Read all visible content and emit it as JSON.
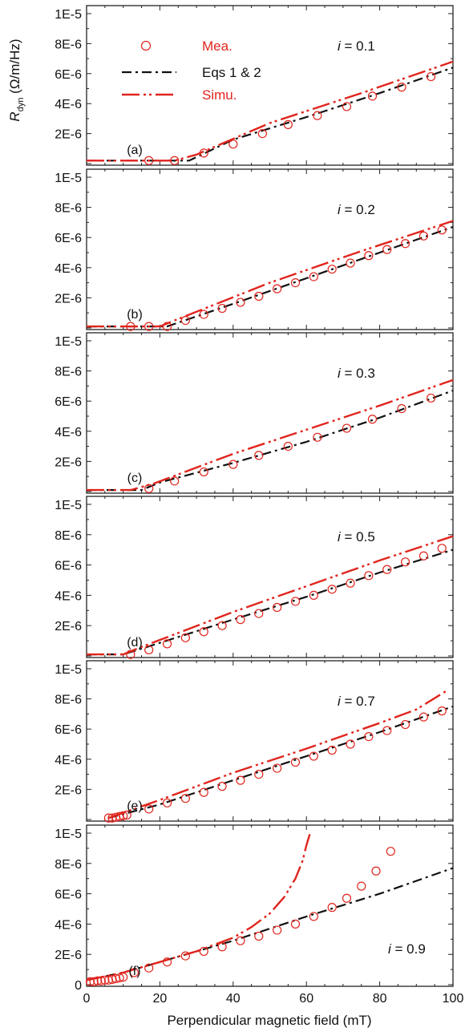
{
  "figure": {
    "y_axis_label": "R",
    "y_axis_label_sub": "dyn",
    "y_axis_label_unit": " (Ω/m/Hz)",
    "x_axis_label": "Perpendicular magnetic field (mT)",
    "legend": [
      {
        "label": "Mea.",
        "style": "circle",
        "color": "#e0251d"
      },
      {
        "label": "Eqs 1 & 2",
        "style": "dashdot",
        "color": "#111111"
      },
      {
        "label": "Simu.",
        "style": "longdashdotdot",
        "color": "#e0251d"
      }
    ],
    "colors": {
      "measured": "#e0251d",
      "equations": "#111111",
      "simulation": "#e0251d",
      "axis": "#222222"
    }
  },
  "chart_data": [
    {
      "type": "scatter",
      "panel": "(a)",
      "annotation_var": "i",
      "annotation_val": " = 0.1",
      "xlim": [
        0,
        100
      ],
      "ylim": [
        0,
        1e-05
      ],
      "grid": false,
      "legend_position": "top-left",
      "y_ticks": [
        "2E-6",
        "4E-6",
        "6E-6",
        "8E-6",
        "1E-5"
      ],
      "series": [
        {
          "name": "Mea.",
          "x": [
            17,
            24,
            32,
            40,
            48,
            55,
            63,
            71,
            78,
            86,
            94
          ],
          "y": [
            2e-07,
            2e-07,
            7e-07,
            1.3e-06,
            2e-06,
            2.6e-06,
            3.2e-06,
            3.8e-06,
            4.5e-06,
            5.1e-06,
            5.8e-06
          ]
        },
        {
          "name": "Eqs 1 & 2",
          "x": [
            0,
            28,
            40,
            60,
            80,
            100
          ],
          "y": [
            2e-07,
            2e-07,
            1.6e-06,
            3.1e-06,
            4.7e-06,
            6.4e-06
          ]
        },
        {
          "name": "Simu.",
          "x": [
            0,
            24,
            30,
            50,
            75,
            100
          ],
          "y": [
            2e-07,
            2e-07,
            6e-07,
            2.7e-06,
            4.7e-06,
            6.8e-06
          ]
        }
      ]
    },
    {
      "type": "scatter",
      "panel": "(b)",
      "annotation_var": "i",
      "annotation_val": " = 0.2",
      "xlim": [
        0,
        100
      ],
      "ylim": [
        0,
        1e-05
      ],
      "grid": false,
      "y_ticks": [
        "2E-6",
        "4E-6",
        "6E-6",
        "8E-6",
        "1E-5"
      ],
      "series": [
        {
          "name": "Mea.",
          "x": [
            12,
            17,
            22,
            27,
            32,
            37,
            42,
            47,
            52,
            57,
            62,
            67,
            72,
            77,
            82,
            87,
            92,
            97
          ],
          "y": [
            1e-07,
            1e-07,
            1e-07,
            5e-07,
            9e-07,
            1.3e-06,
            1.7e-06,
            2.1e-06,
            2.6e-06,
            3e-06,
            3.4e-06,
            3.9e-06,
            4.3e-06,
            4.8e-06,
            5.2e-06,
            5.6e-06,
            6.1e-06,
            6.5e-06
          ]
        },
        {
          "name": "Eqs 1 & 2",
          "x": [
            0,
            22,
            40,
            60,
            80,
            100
          ],
          "y": [
            1e-07,
            1e-07,
            1.6e-06,
            3.3e-06,
            5e-06,
            6.7e-06
          ]
        },
        {
          "name": "Simu.",
          "x": [
            0,
            20,
            24,
            50,
            75,
            100
          ],
          "y": [
            1e-07,
            1e-07,
            5e-07,
            3e-06,
            5.1e-06,
            7.1e-06
          ]
        }
      ]
    },
    {
      "type": "scatter",
      "panel": "(c)",
      "annotation_var": "i",
      "annotation_val": " = 0.3",
      "xlim": [
        0,
        100
      ],
      "ylim": [
        0,
        1e-05
      ],
      "grid": false,
      "y_ticks": [
        "2E-6",
        "4E-6",
        "6E-6",
        "8E-6",
        "1E-5"
      ],
      "series": [
        {
          "name": "Mea.",
          "x": [
            17,
            24,
            32,
            40,
            47,
            55,
            63,
            71,
            78,
            86,
            94
          ],
          "y": [
            2e-07,
            7e-07,
            1.3e-06,
            1.8e-06,
            2.4e-06,
            3e-06,
            3.6e-06,
            4.2e-06,
            4.8e-06,
            5.5e-06,
            6.2e-06
          ]
        },
        {
          "name": "Eqs 1 & 2",
          "x": [
            0,
            15,
            20,
            40,
            60,
            80,
            100
          ],
          "y": [
            1e-07,
            1e-07,
            6e-07,
            1.9e-06,
            3.3e-06,
            4.9e-06,
            6.7e-06
          ]
        },
        {
          "name": "Simu.",
          "x": [
            0,
            12,
            18,
            40,
            60,
            80,
            100
          ],
          "y": [
            1e-07,
            1e-07,
            5e-07,
            2.5e-06,
            4.1e-06,
            5.7e-06,
            7.4e-06
          ]
        }
      ]
    },
    {
      "type": "scatter",
      "panel": "(d)",
      "annotation_var": "i",
      "annotation_val": " = 0.5",
      "xlim": [
        0,
        100
      ],
      "ylim": [
        0,
        1e-05
      ],
      "grid": false,
      "y_ticks": [
        "2E-6",
        "4E-6",
        "6E-6",
        "8E-6",
        "1E-5"
      ],
      "series": [
        {
          "name": "Mea.",
          "x": [
            12,
            17,
            22,
            27,
            32,
            37,
            42,
            47,
            52,
            57,
            62,
            67,
            72,
            77,
            82,
            87,
            92,
            97
          ],
          "y": [
            1e-07,
            4e-07,
            8e-07,
            1.2e-06,
            1.6e-06,
            2e-06,
            2.4e-06,
            2.8e-06,
            3.2e-06,
            3.6e-06,
            4e-06,
            4.4e-06,
            4.8e-06,
            5.3e-06,
            5.7e-06,
            6.2e-06,
            6.6e-06,
            7.1e-06
          ]
        },
        {
          "name": "Eqs 1 & 2",
          "x": [
            0,
            10,
            14,
            40,
            60,
            80,
            100
          ],
          "y": [
            1e-07,
            1e-07,
            4e-07,
            2.4e-06,
            3.9e-06,
            5.5e-06,
            7e-06
          ]
        },
        {
          "name": "Simu.",
          "x": [
            0,
            10,
            14,
            40,
            60,
            80,
            100
          ],
          "y": [
            1e-07,
            1e-07,
            5e-07,
            2.9e-06,
            4.6e-06,
            6.3e-06,
            7.9e-06
          ]
        }
      ]
    },
    {
      "type": "scatter",
      "panel": "(e)",
      "annotation_var": "i",
      "annotation_val": " = 0.7",
      "xlim": [
        0,
        100
      ],
      "ylim": [
        0,
        1e-05
      ],
      "grid": false,
      "y_ticks": [
        "2E-6",
        "4E-6",
        "6E-6",
        "8E-6",
        "1E-5"
      ],
      "series": [
        {
          "name": "Mea.",
          "x": [
            6,
            7,
            8,
            9,
            10,
            11,
            17,
            22,
            27,
            32,
            37,
            42,
            47,
            52,
            57,
            62,
            67,
            72,
            77,
            82,
            87,
            92,
            97
          ],
          "y": [
            1e-07,
            1e-07,
            1.5e-07,
            2e-07,
            2.5e-07,
            3e-07,
            7e-07,
            1.1e-06,
            1.4e-06,
            1.8e-06,
            2.2e-06,
            2.6e-06,
            3e-06,
            3.4e-06,
            3.8e-06,
            4.2e-06,
            4.6e-06,
            5e-06,
            5.5e-06,
            5.9e-06,
            6.3e-06,
            6.8e-06,
            7.2e-06
          ]
        },
        {
          "name": "Eqs 1 & 2",
          "x": [
            6,
            20,
            40,
            60,
            80,
            100
          ],
          "y": [
            1e-07,
            1e-06,
            2.6e-06,
            4.2e-06,
            5.8e-06,
            7.5e-06
          ]
        },
        {
          "name": "Simu.",
          "x": [
            6,
            20,
            40,
            60,
            80,
            90,
            98
          ],
          "y": [
            1e-07,
            1.3e-06,
            3.1e-06,
            4.7e-06,
            6.4e-06,
            7.3e-06,
            8.5e-06
          ]
        }
      ]
    },
    {
      "type": "scatter",
      "panel": "(f)",
      "annotation_var": "i",
      "annotation_val": " = 0.9",
      "xlim": [
        0,
        100
      ],
      "ylim": [
        0,
        1e-05
      ],
      "grid": false,
      "y_ticks": [
        "0",
        "2E-6",
        "4E-6",
        "6E-6",
        "8E-6",
        "1E-5"
      ],
      "x_ticks": [
        "0",
        "20",
        "40",
        "60",
        "80",
        "100"
      ],
      "series": [
        {
          "name": "Mea.",
          "x": [
            1,
            2,
            3,
            4,
            5,
            6,
            7,
            8,
            9,
            10,
            13,
            17,
            22,
            27,
            32,
            37,
            42,
            47,
            52,
            57,
            62,
            67,
            71,
            75,
            79,
            83
          ],
          "y": [
            2e-07,
            2e-07,
            2.5e-07,
            2.5e-07,
            3e-07,
            3e-07,
            3.5e-07,
            4e-07,
            4.5e-07,
            5e-07,
            8e-07,
            1.1e-06,
            1.5e-06,
            1.9e-06,
            2.2e-06,
            2.5e-06,
            2.9e-06,
            3.2e-06,
            3.6e-06,
            4e-06,
            4.5e-06,
            5.1e-06,
            5.7e-06,
            6.5e-06,
            7.5e-06,
            8.8e-06
          ]
        },
        {
          "name": "Eqs 1 & 2",
          "x": [
            0,
            10,
            20,
            40,
            60,
            80,
            100
          ],
          "y": [
            3e-07,
            8e-07,
            1.5e-06,
            2.9e-06,
            4.5e-06,
            6e-06,
            7.7e-06
          ]
        },
        {
          "name": "Simu.",
          "x": [
            0,
            10,
            20,
            30,
            40,
            45,
            50,
            54,
            57,
            59,
            60,
            61
          ],
          "y": [
            3e-07,
            8e-07,
            1.5e-06,
            2.2e-06,
            3.1e-06,
            3.8e-06,
            4.7e-06,
            5.8e-06,
            7e-06,
            8.2e-06,
            9.2e-06,
            1e-05
          ]
        }
      ]
    }
  ]
}
